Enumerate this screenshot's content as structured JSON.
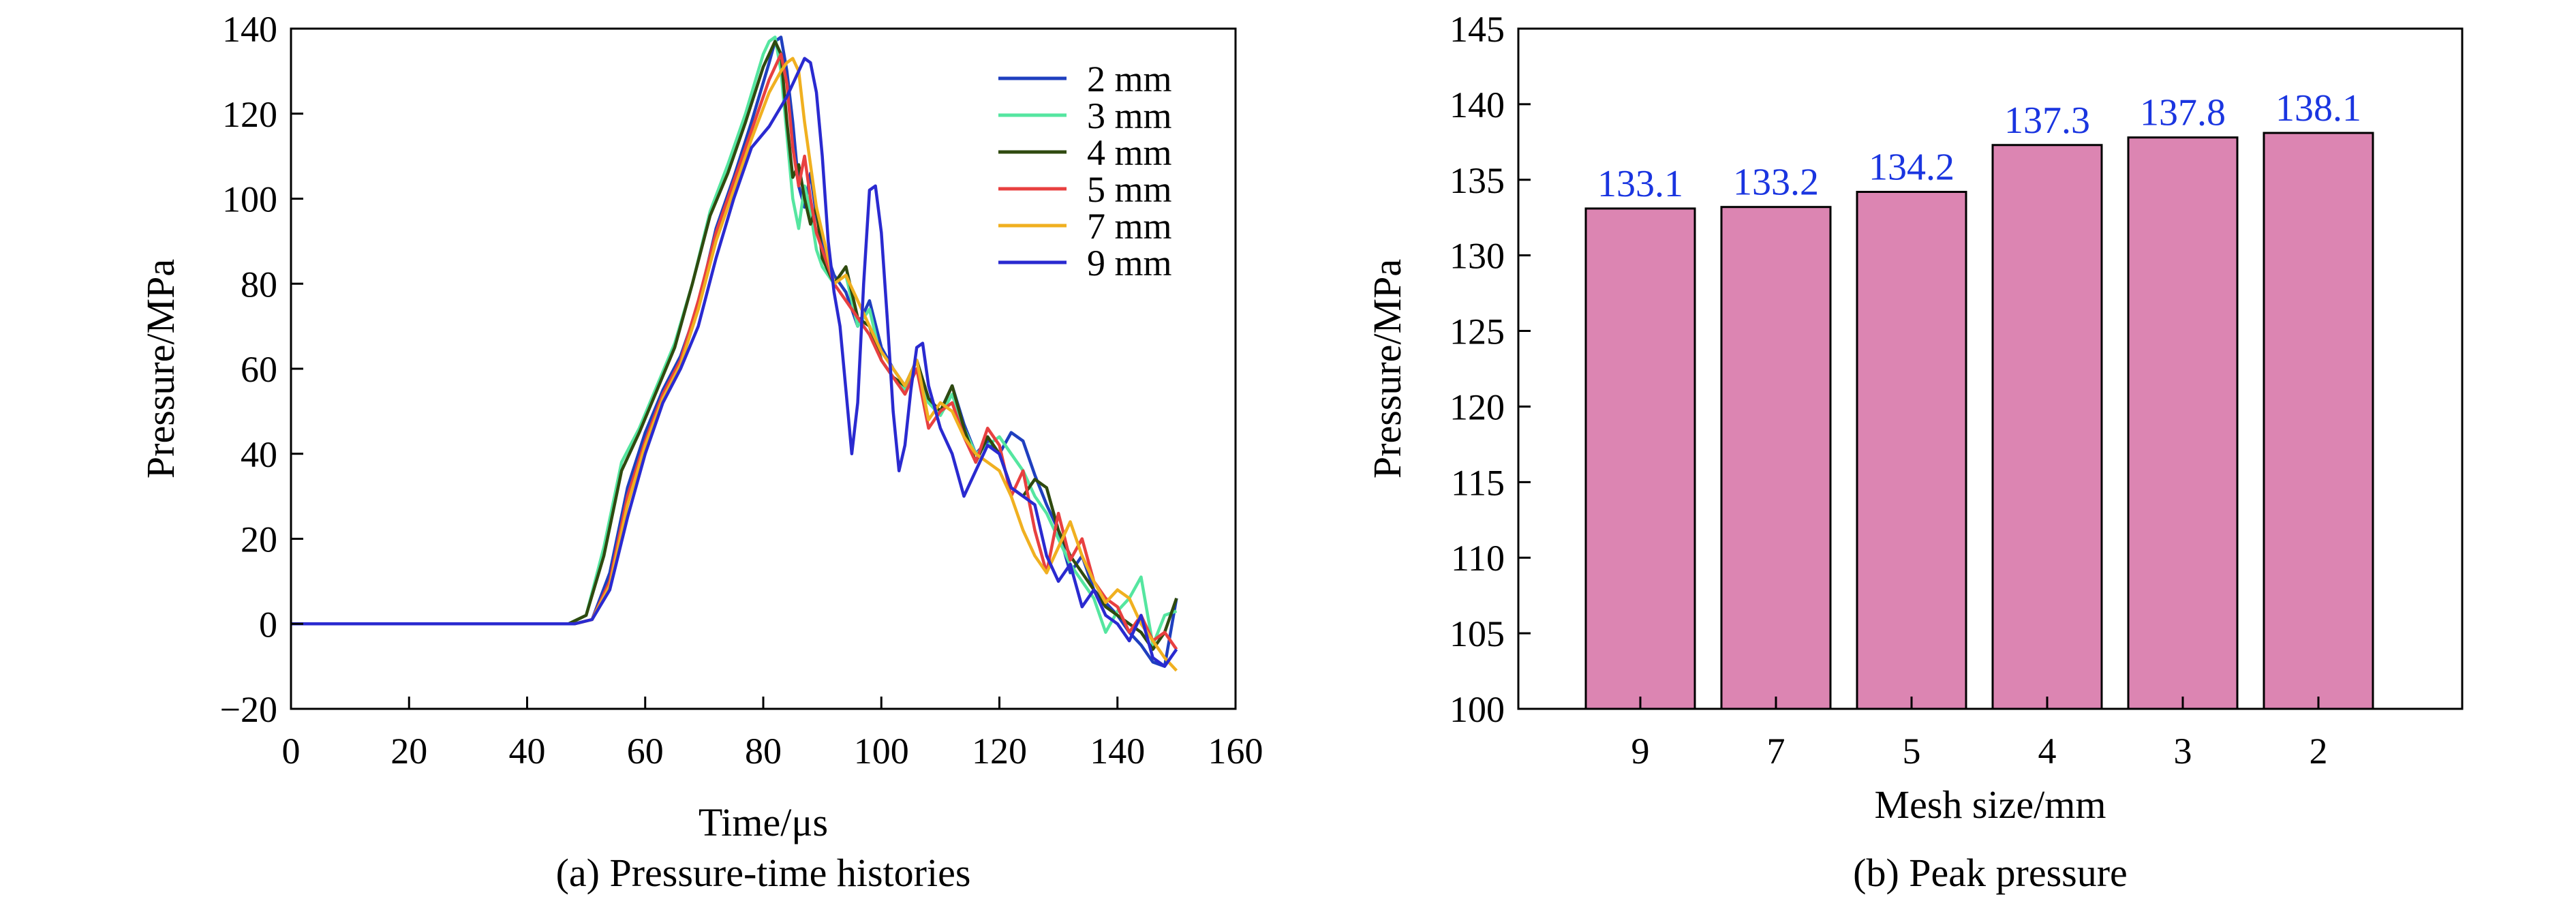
{
  "chart_data": [
    {
      "type": "line",
      "xlabel": "Time/μs",
      "ylabel": "Pressure/MPa",
      "caption": "(a) Pressure-time histories",
      "xlim": [
        0,
        160
      ],
      "ylim": [
        -20,
        140
      ],
      "xticks": [
        0,
        20,
        40,
        60,
        80,
        100,
        120,
        140,
        160
      ],
      "yticks": [
        -20,
        0,
        20,
        40,
        60,
        80,
        100,
        120,
        140
      ],
      "ytick_labels": [
        "−20",
        "0",
        "20",
        "40",
        "60",
        "80",
        "100",
        "120",
        "140"
      ],
      "legend_position": "top-right",
      "series": [
        {
          "name": "2 mm",
          "color": "#1f3fbf",
          "x": [
            0,
            48,
            51,
            54,
            57,
            60,
            63,
            66,
            69,
            72,
            75,
            78,
            81,
            82,
            83,
            84,
            85,
            86,
            87,
            88,
            89,
            90,
            91,
            92,
            94,
            96,
            98,
            100,
            102,
            104,
            106,
            108,
            110,
            112,
            114,
            116,
            118,
            120,
            122,
            124,
            126,
            128,
            130,
            132,
            134,
            136,
            138,
            140,
            142,
            144,
            146,
            148,
            150
          ],
          "y": [
            0,
            0,
            1,
            12,
            32,
            45,
            55,
            63,
            75,
            93,
            105,
            118,
            132,
            137,
            138,
            130,
            118,
            103,
            98,
            106,
            96,
            90,
            86,
            82,
            78,
            70,
            76,
            65,
            60,
            56,
            62,
            52,
            50,
            56,
            47,
            40,
            43,
            40,
            45,
            43,
            35,
            28,
            22,
            12,
            16,
            8,
            5,
            2,
            -2,
            -5,
            -9,
            -10,
            6
          ]
        },
        {
          "name": "3 mm",
          "color": "#55e6a0",
          "x": [
            0,
            47,
            50,
            53,
            56,
            59,
            62,
            65,
            68,
            71,
            74,
            77,
            80,
            81,
            82,
            83,
            84,
            85,
            86,
            87,
            88,
            89,
            90,
            92,
            94,
            96,
            98,
            100,
            102,
            104,
            106,
            108,
            110,
            112,
            114,
            116,
            118,
            120,
            122,
            124,
            126,
            128,
            130,
            132,
            134,
            136,
            138,
            140,
            142,
            144,
            146,
            148,
            150
          ],
          "y": [
            0,
            0,
            2,
            18,
            38,
            46,
            56,
            66,
            80,
            97,
            108,
            120,
            134,
            137,
            138,
            130,
            115,
            100,
            93,
            103,
            97,
            88,
            84,
            80,
            82,
            70,
            74,
            62,
            58,
            55,
            60,
            52,
            49,
            54,
            46,
            40,
            42,
            44,
            40,
            36,
            30,
            26,
            20,
            14,
            10,
            6,
            -2,
            3,
            6,
            11,
            -5,
            2,
            3
          ]
        },
        {
          "name": "4 mm",
          "color": "#2f4a0f",
          "x": [
            0,
            47,
            50,
            53,
            56,
            59,
            62,
            65,
            68,
            71,
            74,
            77,
            80,
            82,
            83,
            84,
            85,
            86,
            87,
            88,
            89,
            90,
            92,
            94,
            96,
            98,
            100,
            102,
            104,
            106,
            108,
            110,
            112,
            114,
            116,
            118,
            120,
            122,
            124,
            126,
            128,
            130,
            132,
            134,
            136,
            138,
            140,
            142,
            144,
            146,
            148,
            150
          ],
          "y": [
            0,
            0,
            2,
            16,
            36,
            45,
            55,
            65,
            80,
            96,
            106,
            118,
            131,
            137,
            134,
            118,
            105,
            108,
            100,
            94,
            98,
            86,
            80,
            84,
            72,
            70,
            62,
            58,
            56,
            62,
            53,
            50,
            56,
            46,
            38,
            44,
            40,
            32,
            30,
            34,
            32,
            22,
            16,
            12,
            8,
            4,
            2,
            0,
            -2,
            -6,
            -2,
            6
          ]
        },
        {
          "name": "5 mm",
          "color": "#e84040",
          "x": [
            0,
            48,
            51,
            54,
            57,
            60,
            63,
            66,
            69,
            72,
            75,
            78,
            81,
            83,
            84,
            85,
            86,
            87,
            88,
            89,
            90,
            91,
            92,
            94,
            96,
            98,
            100,
            102,
            104,
            106,
            108,
            110,
            112,
            114,
            116,
            118,
            120,
            122,
            124,
            126,
            128,
            130,
            132,
            134,
            136,
            138,
            140,
            142,
            144,
            146,
            148,
            150
          ],
          "y": [
            0,
            0,
            1,
            10,
            30,
            43,
            54,
            62,
            76,
            92,
            104,
            116,
            128,
            134,
            127,
            112,
            103,
            110,
            100,
            92,
            88,
            84,
            80,
            76,
            72,
            68,
            62,
            58,
            54,
            60,
            46,
            50,
            52,
            44,
            38,
            46,
            42,
            30,
            36,
            22,
            12,
            26,
            15,
            20,
            10,
            6,
            4,
            -2,
            2,
            -4,
            -2,
            -6
          ]
        },
        {
          "name": "7 mm",
          "color": "#f0b020",
          "x": [
            0,
            48,
            51,
            54,
            57,
            60,
            63,
            66,
            69,
            72,
            75,
            78,
            81,
            83,
            84,
            85,
            86,
            87,
            88,
            89,
            90,
            91,
            92,
            94,
            96,
            98,
            100,
            102,
            104,
            106,
            108,
            110,
            112,
            114,
            116,
            118,
            120,
            122,
            124,
            126,
            128,
            130,
            132,
            134,
            136,
            138,
            140,
            142,
            144,
            146,
            148,
            150
          ],
          "y": [
            0,
            0,
            1,
            9,
            28,
            42,
            53,
            61,
            74,
            90,
            102,
            114,
            125,
            130,
            132,
            133,
            130,
            118,
            108,
            98,
            92,
            86,
            80,
            82,
            76,
            70,
            64,
            60,
            56,
            62,
            48,
            52,
            50,
            44,
            40,
            38,
            36,
            30,
            22,
            16,
            12,
            18,
            24,
            16,
            10,
            5,
            8,
            6,
            0,
            -4,
            -8,
            -11
          ]
        },
        {
          "name": "9 mm",
          "color": "#2a2ad0",
          "x": [
            0,
            48,
            51,
            54,
            57,
            60,
            63,
            66,
            69,
            72,
            75,
            78,
            81,
            84,
            86,
            87,
            88,
            89,
            90,
            91,
            92,
            93,
            94,
            95,
            96,
            97,
            98,
            99,
            100,
            101,
            102,
            103,
            104,
            105,
            106,
            107,
            108,
            110,
            112,
            114,
            116,
            118,
            120,
            122,
            124,
            126,
            128,
            130,
            132,
            134,
            136,
            138,
            140,
            142,
            144,
            146,
            148,
            150
          ],
          "y": [
            0,
            0,
            1,
            8,
            25,
            40,
            52,
            60,
            70,
            86,
            100,
            112,
            117,
            124,
            130,
            133,
            132,
            125,
            110,
            90,
            78,
            70,
            55,
            40,
            52,
            80,
            102,
            103,
            92,
            72,
            50,
            36,
            42,
            55,
            65,
            66,
            56,
            46,
            40,
            30,
            36,
            42,
            40,
            32,
            30,
            28,
            16,
            10,
            14,
            4,
            8,
            2,
            0,
            -4,
            2,
            -8,
            -10,
            -6
          ]
        }
      ]
    },
    {
      "type": "bar",
      "xlabel": "Mesh size/mm",
      "ylabel": "Pressure/MPa",
      "caption": "(b) Peak pressure",
      "categories": [
        "9",
        "7",
        "5",
        "4",
        "3",
        "2"
      ],
      "values": [
        133.1,
        133.2,
        134.2,
        137.3,
        137.8,
        138.1
      ],
      "data_labels": [
        "133.1",
        "133.2",
        "134.2",
        "137.3",
        "137.8",
        "138.1"
      ],
      "ylim": [
        100,
        145
      ],
      "yticks": [
        100,
        105,
        110,
        115,
        120,
        125,
        130,
        135,
        140,
        145
      ],
      "bar_color": "#dc85b2",
      "label_color": "#1a35e0"
    }
  ]
}
